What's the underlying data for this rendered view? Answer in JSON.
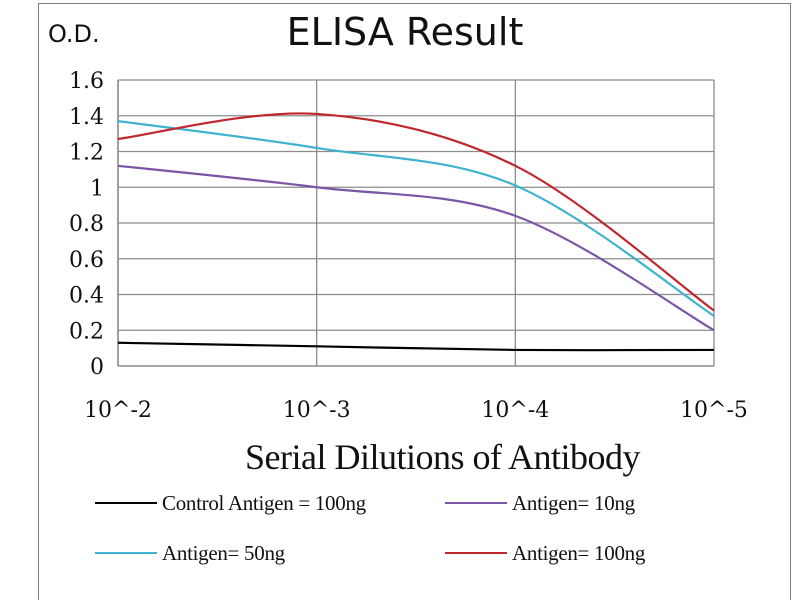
{
  "chart_data": {
    "type": "line",
    "title": "ELISA Result",
    "ylabel": "O.D.",
    "xlabel": "Serial Dilutions  of Antibody",
    "x_tick_labels": [
      "10^-2",
      "10^-3",
      "10^-4",
      "10^-5"
    ],
    "x": [
      0.01,
      0.001,
      0.0001,
      1e-05
    ],
    "x_scale": "log",
    "y_tick_labels": [
      "1.6",
      "1.4",
      "1.2",
      "1",
      "0.8",
      "0.6",
      "0.4",
      "0.2",
      "0"
    ],
    "ylim": [
      0,
      1.6
    ],
    "grid": true,
    "legend_position": "bottom",
    "series": [
      {
        "name": "Control Antigen = 100ng",
        "color": "#000000",
        "values": [
          0.13,
          0.11,
          0.09,
          0.09
        ]
      },
      {
        "name": "Antigen= 10ng",
        "color": "#7b55a6",
        "values": [
          1.12,
          1.0,
          0.84,
          0.2
        ]
      },
      {
        "name": "Antigen= 50ng",
        "color": "#3fb3cf",
        "values": [
          1.37,
          1.22,
          1.01,
          0.28
        ]
      },
      {
        "name": "Antigen= 100ng",
        "color": "#c0272d",
        "values": [
          1.27,
          1.41,
          1.12,
          0.31
        ]
      }
    ]
  }
}
